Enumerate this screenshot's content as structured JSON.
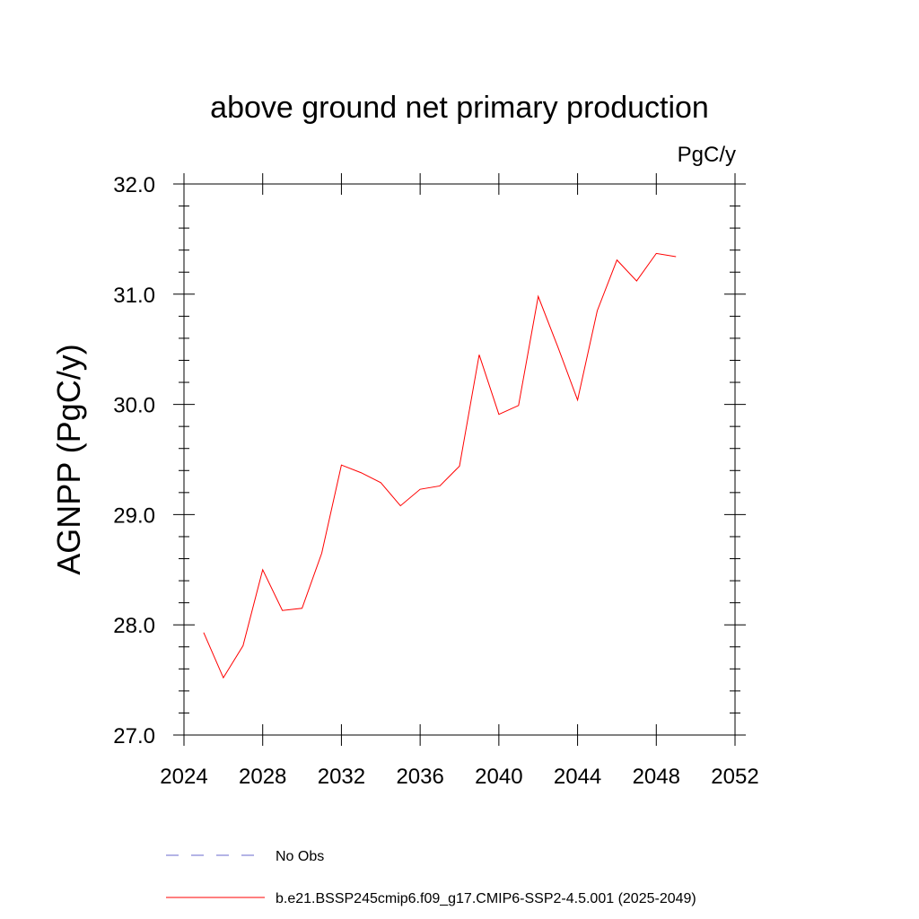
{
  "chart_data": {
    "type": "line",
    "title": "above ground net primary production",
    "units": "PgC/y",
    "ylabel": "AGNPP  (PgC/y)",
    "xlabel": "",
    "xlim": [
      2024,
      2052
    ],
    "ylim": [
      27.0,
      32.0
    ],
    "x_ticks": [
      "2024",
      "2028",
      "2032",
      "2036",
      "2040",
      "2044",
      "2048",
      "2052"
    ],
    "y_ticks": [
      "27.0",
      "28.0",
      "29.0",
      "30.0",
      "31.0",
      "32.0"
    ],
    "grid": false,
    "legend_position": "bottom",
    "series": [
      {
        "name": "No Obs",
        "color": "#6a6acd",
        "style": "dashed",
        "x": [],
        "values": []
      },
      {
        "name": "b.e21.BSSP245cmip6.f09_g17.CMIP6-SSP2-4.5.001 (2025-2049)",
        "color": "#ff0000",
        "style": "solid",
        "x": [
          2025,
          2026,
          2027,
          2028,
          2029,
          2030,
          2031,
          2032,
          2033,
          2034,
          2035,
          2036,
          2037,
          2038,
          2039,
          2040,
          2041,
          2042,
          2043,
          2044,
          2045,
          2046,
          2047,
          2048,
          2049
        ],
        "values": [
          27.93,
          27.52,
          27.81,
          28.5,
          28.13,
          28.15,
          28.65,
          29.45,
          29.38,
          29.29,
          29.08,
          29.23,
          29.26,
          29.44,
          30.45,
          29.91,
          29.99,
          30.98,
          30.52,
          30.04,
          30.85,
          31.31,
          31.12,
          31.37,
          31.34
        ]
      }
    ]
  }
}
